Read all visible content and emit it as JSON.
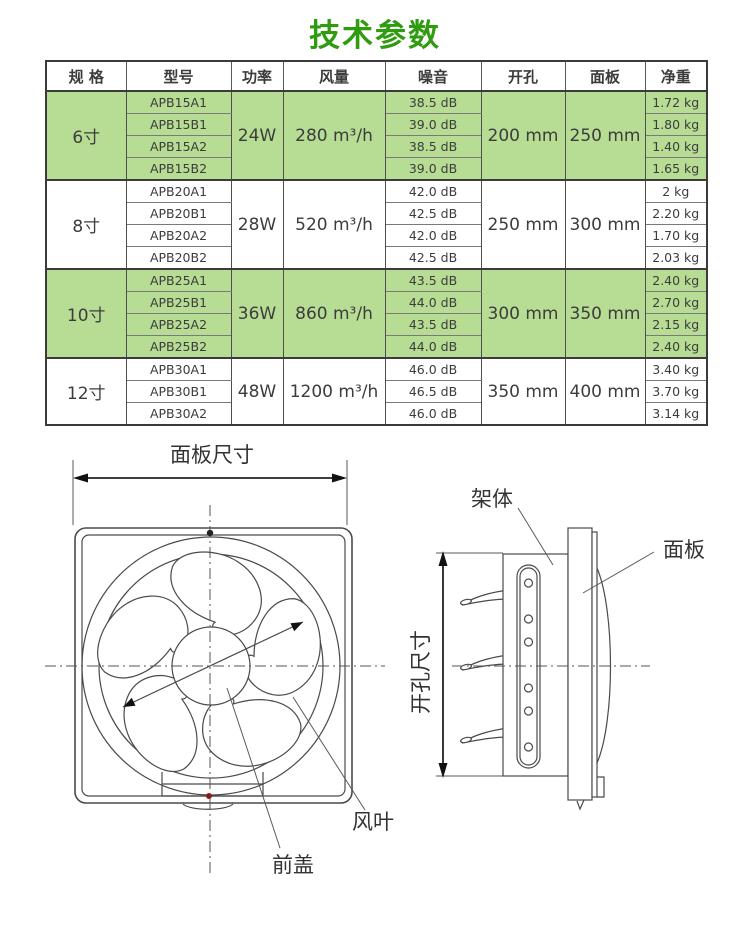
{
  "title": "技术参数",
  "colors": {
    "title_green": "#2f9b0f",
    "row_highlight": "#b7dd95",
    "red_dot": "#8b1a1a"
  },
  "table": {
    "headers": [
      "规 格",
      "型号",
      "功率",
      "风量",
      "噪音",
      "开孔",
      "面板",
      "净重"
    ],
    "groups": [
      {
        "size": "6寸",
        "power": "24W",
        "airflow": "280 m³/h",
        "opening": "200 mm",
        "panel": "250 mm",
        "highlight": true,
        "rows": [
          {
            "model": "APB15A1",
            "noise": "38.5 dB",
            "weight": "1.72 kg"
          },
          {
            "model": "APB15B1",
            "noise": "39.0 dB",
            "weight": "1.80 kg"
          },
          {
            "model": "APB15A2",
            "noise": "38.5 dB",
            "weight": "1.40 kg"
          },
          {
            "model": "APB15B2",
            "noise": "39.0 dB",
            "weight": "1.65 kg"
          }
        ]
      },
      {
        "size": "8寸",
        "power": "28W",
        "airflow": "520 m³/h",
        "opening": "250 mm",
        "panel": "300 mm",
        "highlight": false,
        "rows": [
          {
            "model": "APB20A1",
            "noise": "42.0 dB",
            "weight": "2 kg"
          },
          {
            "model": "APB20B1",
            "noise": "42.5 dB",
            "weight": "2.20 kg"
          },
          {
            "model": "APB20A2",
            "noise": "42.0 dB",
            "weight": "1.70 kg"
          },
          {
            "model": "APB20B2",
            "noise": "42.5 dB",
            "weight": "2.03 kg"
          }
        ]
      },
      {
        "size": "10寸",
        "power": "36W",
        "airflow": "860 m³/h",
        "opening": "300 mm",
        "panel": "350 mm",
        "highlight": true,
        "rows": [
          {
            "model": "APB25A1",
            "noise": "43.5 dB",
            "weight": "2.40 kg"
          },
          {
            "model": "APB25B1",
            "noise": "44.0 dB",
            "weight": "2.70 kg"
          },
          {
            "model": "APB25A2",
            "noise": "43.5 dB",
            "weight": "2.15 kg"
          },
          {
            "model": "APB25B2",
            "noise": "44.0 dB",
            "weight": "2.40 kg"
          }
        ]
      },
      {
        "size": "12寸",
        "power": "48W",
        "airflow": "1200 m³/h",
        "opening": "350 mm",
        "panel": "400 mm",
        "highlight": false,
        "rows": [
          {
            "model": "APB30A1",
            "noise": "46.0 dB",
            "weight": "3.40 kg"
          },
          {
            "model": "APB30B1",
            "noise": "46.5 dB",
            "weight": "3.70 kg"
          },
          {
            "model": "APB30A2",
            "noise": "46.0 dB",
            "weight": "3.14 kg"
          }
        ]
      }
    ]
  },
  "front_view": {
    "dim_label": "面板尺寸",
    "blade_label": "风叶",
    "cover_label": "前盖"
  },
  "side_view": {
    "frame_label": "架体",
    "panel_label": "面板",
    "opening_dim_label": "开孔尺寸"
  }
}
